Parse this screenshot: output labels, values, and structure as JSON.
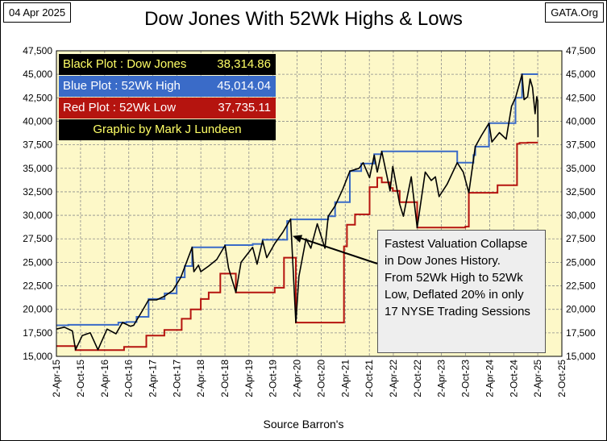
{
  "header": {
    "date": "04 Apr 2025",
    "title": "Dow Jones With 52Wk Highs & Lows",
    "site": "GATA.Org"
  },
  "footer": {
    "source": "Source Barron's"
  },
  "legend": {
    "black_label": "Black Plot : Dow Jones",
    "black_value": "38,314.86",
    "blue_label": "Blue Plot  :  52Wk High",
    "blue_value": "45,014.04",
    "red_label": "Red Plot  :  52Wk Low",
    "red_value": "37,735.11",
    "credit": "Graphic by Mark J Lundeen"
  },
  "annotation": {
    "lines": [
      "Fastest Valuation Collapse",
      "in Dow Jones History.",
      "From 52Wk High to 52Wk",
      "Low, Deflated 20% in only",
      "17 NYSE Trading Sessions"
    ]
  },
  "colors": {
    "plot_bg": "#fdf8c8",
    "grid": "#8c8c8c",
    "dow": "#000000",
    "high": "#3a6bc8",
    "low": "#b5140f"
  },
  "chart_data": {
    "type": "line",
    "title": "Dow Jones With 52Wk Highs & Lows",
    "xlabel": "",
    "ylabel": "",
    "ylim": [
      15000,
      47500
    ],
    "xlim": [
      "2015-04-02",
      "2025-10-02"
    ],
    "grid": true,
    "y_ticks": [
      15000,
      17500,
      20000,
      22500,
      25000,
      27500,
      30000,
      32500,
      35000,
      37500,
      40000,
      42500,
      45000,
      47500
    ],
    "y_tick_labels": [
      "15,000",
      "17,500",
      "20,000",
      "22,500",
      "25,000",
      "27,500",
      "30,000",
      "32,500",
      "35,000",
      "37,500",
      "40,000",
      "42,500",
      "45,000",
      "47,500"
    ],
    "x_ticks": [
      "2015-04-02",
      "2015-10-02",
      "2016-04-02",
      "2016-10-02",
      "2017-04-02",
      "2017-10-02",
      "2018-04-02",
      "2018-10-02",
      "2019-04-02",
      "2019-10-02",
      "2020-04-02",
      "2020-10-02",
      "2021-04-02",
      "2021-10-02",
      "2022-04-02",
      "2022-10-02",
      "2023-04-02",
      "2023-10-02",
      "2024-04-02",
      "2024-10-02",
      "2025-04-02",
      "2025-10-02"
    ],
    "x_tick_labels": [
      "2-Apr-15",
      "2-Oct-15",
      "2-Apr-16",
      "2-Oct-16",
      "2-Apr-17",
      "2-Oct-17",
      "2-Apr-18",
      "2-Oct-18",
      "2-Apr-19",
      "2-Oct-19",
      "2-Apr-20",
      "2-Oct-20",
      "2-Apr-21",
      "2-Oct-21",
      "2-Apr-22",
      "2-Oct-22",
      "2-Apr-23",
      "2-Oct-23",
      "2-Apr-24",
      "2-Oct-24",
      "2-Apr-25",
      "2-Oct-25"
    ],
    "series": [
      {
        "name": "Dow Jones",
        "color": "#000000",
        "x": [
          "2015-04-02",
          "2015-06-01",
          "2015-08-01",
          "2015-08-25",
          "2015-10-15",
          "2015-12-15",
          "2016-02-11",
          "2016-04-20",
          "2016-06-27",
          "2016-08-15",
          "2016-10-15",
          "2016-11-08",
          "2017-01-15",
          "2017-03-01",
          "2017-05-01",
          "2017-07-01",
          "2017-09-01",
          "2017-11-01",
          "2018-01-26",
          "2018-02-08",
          "2018-03-15",
          "2018-04-02",
          "2018-06-01",
          "2018-08-01",
          "2018-10-03",
          "2018-10-29",
          "2018-12-24",
          "2019-02-01",
          "2019-04-30",
          "2019-06-03",
          "2019-07-15",
          "2019-08-15",
          "2019-10-15",
          "2019-12-15",
          "2020-02-12",
          "2020-03-23",
          "2020-04-15",
          "2020-06-08",
          "2020-07-15",
          "2020-09-02",
          "2020-10-30",
          "2020-11-24",
          "2021-01-15",
          "2021-03-15",
          "2021-05-07",
          "2021-07-15",
          "2021-08-16",
          "2021-10-04",
          "2021-11-08",
          "2021-12-01",
          "2022-01-04",
          "2022-03-08",
          "2022-03-29",
          "2022-05-20",
          "2022-06-17",
          "2022-08-16",
          "2022-09-30",
          "2022-11-30",
          "2023-01-15",
          "2023-02-15",
          "2023-03-15",
          "2023-05-15",
          "2023-07-31",
          "2023-09-15",
          "2023-10-27",
          "2023-12-15",
          "2024-01-31",
          "2024-03-28",
          "2024-04-19",
          "2024-06-15",
          "2024-08-05",
          "2024-09-15",
          "2024-10-15",
          "2024-12-04",
          "2024-12-19",
          "2025-01-15",
          "2025-02-03",
          "2025-02-21",
          "2025-03-13",
          "2025-03-25",
          "2025-04-02",
          "2025-04-04"
        ],
        "values": [
          17900,
          18100,
          17700,
          15700,
          17200,
          17500,
          15700,
          17900,
          17400,
          18600,
          18200,
          18300,
          19900,
          21000,
          21000,
          21400,
          22000,
          23400,
          26600,
          24000,
          24700,
          24000,
          24600,
          25300,
          26800,
          24400,
          21800,
          25000,
          26600,
          24800,
          27300,
          25500,
          27000,
          28200,
          29600,
          18590,
          23500,
          27500,
          26500,
          29100,
          26500,
          29900,
          31000,
          32800,
          34700,
          35000,
          35600,
          34000,
          36400,
          34600,
          36800,
          32600,
          35200,
          31200,
          29900,
          34100,
          28700,
          34600,
          33700,
          34100,
          32000,
          33300,
          35600,
          34600,
          32400,
          37300,
          38500,
          39800,
          37800,
          38800,
          38100,
          41600,
          42500,
          45000,
          42300,
          42600,
          44500,
          43600,
          40800,
          42600,
          42200,
          38314.86
        ]
      },
      {
        "name": "52Wk High",
        "color": "#3a6bc8",
        "x": [
          "2015-04-02",
          "2015-07-01",
          "2016-07-15",
          "2016-09-15",
          "2016-11-30",
          "2017-03-01",
          "2017-07-01",
          "2017-10-01",
          "2017-12-01",
          "2018-01-26",
          "2018-10-03",
          "2019-05-01",
          "2019-07-15",
          "2020-01-17",
          "2020-02-12",
          "2020-11-24",
          "2021-01-15",
          "2021-05-07",
          "2021-08-01",
          "2021-11-08",
          "2022-01-04",
          "2023-01-04",
          "2023-07-31",
          "2023-12-01",
          "2023-12-15",
          "2024-03-28",
          "2024-10-15",
          "2024-12-04",
          "2025-04-04"
        ],
        "values": [
          18300,
          18350,
          18600,
          18650,
          19200,
          21100,
          21700,
          23400,
          24600,
          26600,
          26830,
          26950,
          27400,
          29400,
          29570,
          29900,
          31400,
          34700,
          35500,
          36500,
          36800,
          36800,
          35600,
          36400,
          37300,
          39800,
          42500,
          45014.04,
          45014.04
        ]
      },
      {
        "name": "52Wk Low",
        "color": "#b5140f",
        "x": [
          "2015-04-02",
          "2015-08-25",
          "2016-08-27",
          "2017-02-12",
          "2017-06-29",
          "2017-11-08",
          "2018-01-15",
          "2018-04-02",
          "2018-06-01",
          "2018-08-28",
          "2018-12-24",
          "2019-10-15",
          "2019-12-24",
          "2020-03-23",
          "2021-03-23",
          "2021-04-15",
          "2021-06-15",
          "2021-10-04",
          "2021-12-01",
          "2022-01-04",
          "2022-03-08",
          "2022-03-29",
          "2022-05-20",
          "2022-09-30",
          "2023-09-30",
          "2023-10-27",
          "2024-06-01",
          "2024-10-27",
          "2024-11-15",
          "2025-01-15",
          "2025-04-04"
        ],
        "values": [
          16100,
          15670,
          16000,
          17200,
          17800,
          19000,
          20000,
          21100,
          21800,
          23800,
          21790,
          22300,
          25500,
          18590,
          26700,
          29000,
          30100,
          33000,
          34000,
          33500,
          32900,
          32600,
          31400,
          28700,
          28800,
          32400,
          33200,
          37600,
          37700,
          37735.11,
          37735.11
        ]
      }
    ]
  }
}
